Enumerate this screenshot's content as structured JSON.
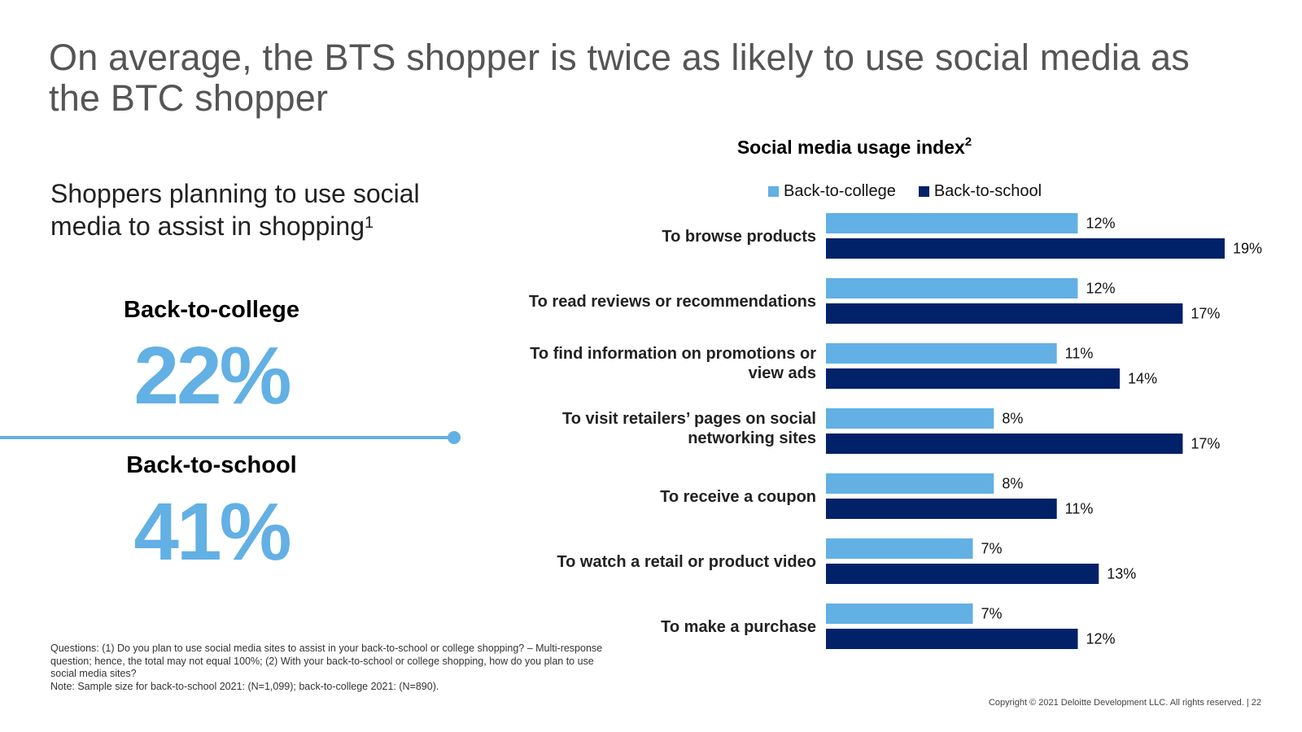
{
  "title": "On average, the BTS shopper is twice as likely to use social media as the BTC shopper",
  "subheading": {
    "text": "Shoppers planning to use social media to assist in shopping",
    "footnote_ref": "1"
  },
  "stats": [
    {
      "label": "Back-to-college",
      "value": "22%"
    },
    {
      "label": "Back-to-school",
      "value": "41%"
    }
  ],
  "colors": {
    "light_blue": "#62b0e4",
    "dark_navy": "#012169",
    "divider": "#62b0e4"
  },
  "footnotes": [
    "Questions: (1) Do you plan to use social media sites to assist in your back-to-school or college shopping? – Multi-response question; hence, the total may not equal 100%; (2) With your back-to-school or college shopping, how do you plan to use social media sites?",
    "Note: Sample size for back-to-school 2021: (N=1,099); back-to-college 2021: (N=890)."
  ],
  "copyright": "Copyright © 2021 Deloitte Development LLC. All rights reserved.  |   22",
  "chart_data": {
    "type": "bar",
    "orientation": "horizontal",
    "title": "Social media usage index",
    "title_footnote_ref": "2",
    "legend": [
      "Back-to-college",
      "Back-to-school"
    ],
    "legend_position": "top",
    "grid": false,
    "xlim": [
      0,
      20
    ],
    "categories": [
      [
        "To browse products"
      ],
      [
        "To read reviews or recommendations"
      ],
      [
        "To find information on promotions or",
        "view ads"
      ],
      [
        "To visit retailers’ pages on social",
        "networking sites"
      ],
      [
        "To receive a coupon"
      ],
      [
        "To watch a retail or product video"
      ],
      [
        "To make a purchase"
      ]
    ],
    "series": [
      {
        "name": "Back-to-college",
        "color": "#62b0e4",
        "values": [
          12,
          12,
          11,
          8,
          8,
          7,
          7
        ]
      },
      {
        "name": "Back-to-school",
        "color": "#012169",
        "values": [
          19,
          17,
          14,
          17,
          11,
          13,
          12
        ]
      }
    ],
    "value_suffix": "%"
  }
}
